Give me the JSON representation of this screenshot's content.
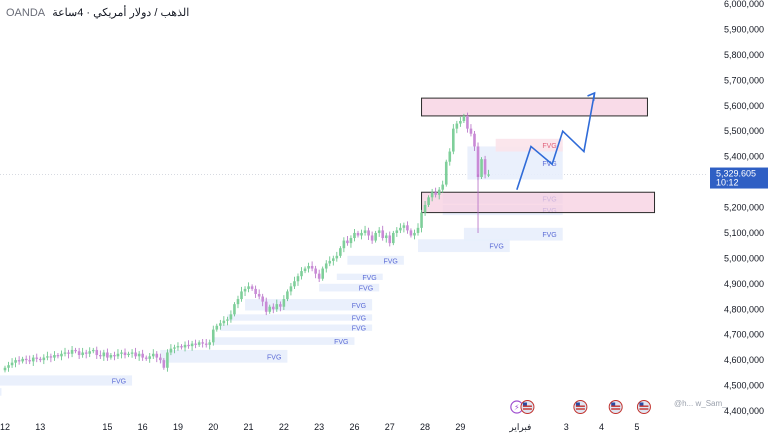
{
  "header": {
    "title": "الذهب / دولار أمريكي · 4ساعة",
    "broker": "OANDA"
  },
  "colors": {
    "up": "#7fcf9a",
    "up_border": "#5cbf80",
    "down": "#c98ad6",
    "down_border": "#b36bc4",
    "fvg_fill": "#e8eefc",
    "fvg_text": "#5b6bd6",
    "zone_fill": "#f7cfe0",
    "zone_border": "#2a2a2a",
    "projection": "#2f6bd8",
    "price_tag": "#2f5fc4",
    "grid_text": "#131722"
  },
  "watermark": "@h... w_Sam_",
  "chart_data": {
    "type": "candlestick",
    "title": "الذهب / دولار أمريكي · 4ساعة",
    "source": "OANDA",
    "ylim": [
      4400000,
      6000000
    ],
    "y_ticks": [
      "4,400,000",
      "4,500,000",
      "4,600,000",
      "4,700,000",
      "4,800,000",
      "4,900,000",
      "5,000,000",
      "5,100,000",
      "5,200,000",
      "5,300,000",
      "5,400,000",
      "5,500,000",
      "5,600,000",
      "5,700,000",
      "5,800,000",
      "5,900,000",
      "6,000,000"
    ],
    "y_tick_values": [
      4400000,
      4500000,
      4600000,
      4700000,
      4800000,
      4900000,
      5000000,
      5100000,
      5200000,
      5300000,
      5400000,
      5500000,
      5600000,
      5700000,
      5800000,
      5900000,
      6000000
    ],
    "x_ticks": [
      {
        "label": "12",
        "i": 0
      },
      {
        "label": "13",
        "i": 10
      },
      {
        "label": "15",
        "i": 29
      },
      {
        "label": "16",
        "i": 39
      },
      {
        "label": "19",
        "i": 49
      },
      {
        "label": "20",
        "i": 59
      },
      {
        "label": "21",
        "i": 69
      },
      {
        "label": "22",
        "i": 79
      },
      {
        "label": "23",
        "i": 89
      },
      {
        "label": "26",
        "i": 99
      },
      {
        "label": "27",
        "i": 109
      },
      {
        "label": "28",
        "i": 119
      },
      {
        "label": "29",
        "i": 129
      },
      {
        "label": "فبراير",
        "i": 146
      },
      {
        "label": "3",
        "i": 159
      },
      {
        "label": "4",
        "i": 169
      },
      {
        "label": "5",
        "i": 179
      }
    ],
    "current_price": "5,329.605",
    "current_value": 5329605,
    "countdown": "10:12",
    "candles_close": [
      4570000,
      4580000,
      4590000,
      4600000,
      4595000,
      4605000,
      4600000,
      4595000,
      4610000,
      4605000,
      4600000,
      4610000,
      4615000,
      4610000,
      4620000,
      4615000,
      4625000,
      4630000,
      4625000,
      4640000,
      4635000,
      4620000,
      4630000,
      4625000,
      4635000,
      4640000,
      4620000,
      4615000,
      4630000,
      4610000,
      4620000,
      4615000,
      4625000,
      4630000,
      4620000,
      4625000,
      4630000,
      4615000,
      4625000,
      4610000,
      4605000,
      4615000,
      4625000,
      4610000,
      4600000,
      4570000,
      4630000,
      4645000,
      4650000,
      4655000,
      4650000,
      4660000,
      4655000,
      4665000,
      4660000,
      4670000,
      4665000,
      4660000,
      4670000,
      4720000,
      4735000,
      4745000,
      4755000,
      4760000,
      4780000,
      4820000,
      4840000,
      4870000,
      4880000,
      4890000,
      4880000,
      4860000,
      4850000,
      4830000,
      4790000,
      4810000,
      4800000,
      4820000,
      4810000,
      4840000,
      4870000,
      4890000,
      4910000,
      4930000,
      4950000,
      4960000,
      4970000,
      4960000,
      4940000,
      4920000,
      4960000,
      4980000,
      4990000,
      5000000,
      5010000,
      5040000,
      5070000,
      5060000,
      5080000,
      5100000,
      5090000,
      5100000,
      5110000,
      5090000,
      5070000,
      5100000,
      5110000,
      5080000,
      5090000,
      5060000,
      5100000,
      5110000,
      5120000,
      5130000,
      5110000,
      5090000,
      5100000,
      5120000,
      5180000,
      5210000,
      5240000,
      5260000,
      5250000,
      5270000,
      5290000,
      5380000,
      5420000,
      5510000,
      5530000,
      5540000,
      5560000,
      5510000,
      5490000,
      5440000,
      5320000,
      5390000,
      5330000,
      5330000
    ],
    "fvg_zones": [
      {
        "label": "FVG",
        "x0": -2,
        "x1": 36,
        "top": 4540000,
        "bottom": 4500000,
        "color": "blue"
      },
      {
        "label": "FVG",
        "x0": -6,
        "x1": -1,
        "top": 4490000,
        "bottom": 4460000,
        "color": "blue"
      },
      {
        "label": "FVG",
        "x0": 44,
        "x1": 80,
        "top": 4640000,
        "bottom": 4590000,
        "color": "blue"
      },
      {
        "label": "FVG",
        "x0": 59,
        "x1": 99,
        "top": 4690000,
        "bottom": 4660000,
        "color": "blue"
      },
      {
        "label": "FVG",
        "x0": 61,
        "x1": 104,
        "top": 4740000,
        "bottom": 4715000,
        "color": "blue"
      },
      {
        "label": "FVG",
        "x0": 63,
        "x1": 104,
        "top": 4780000,
        "bottom": 4755000,
        "color": "blue"
      },
      {
        "label": "FVG",
        "x0": 68,
        "x1": 104,
        "top": 4840000,
        "bottom": 4795000,
        "color": "blue"
      },
      {
        "label": "FVG",
        "x0": 89,
        "x1": 106,
        "top": 4900000,
        "bottom": 4870000,
        "color": "blue"
      },
      {
        "label": "FVG",
        "x0": 94,
        "x1": 107,
        "top": 4940000,
        "bottom": 4915000,
        "color": "blue"
      },
      {
        "label": "FVG",
        "x0": 97,
        "x1": 113,
        "top": 5010000,
        "bottom": 4975000,
        "color": "blue"
      },
      {
        "label": "FVG",
        "x0": 117,
        "x1": 143,
        "top": 5075000,
        "bottom": 5025000,
        "color": "blue"
      },
      {
        "label": "FVG",
        "x0": 130,
        "x1": 158,
        "top": 5120000,
        "bottom": 5070000,
        "color": "blue"
      },
      {
        "label": "FVG",
        "x0": 124,
        "x1": 158,
        "top": 5210000,
        "bottom": 5170000,
        "color": "blue"
      },
      {
        "label": "FVG",
        "x0": 124,
        "x1": 158,
        "top": 5255000,
        "bottom": 5215000,
        "color": "blue"
      },
      {
        "label": "FVG",
        "x0": 131,
        "x1": 158,
        "top": 5440000,
        "bottom": 5310000,
        "color": "blue"
      },
      {
        "label": "FVG",
        "x0": 139,
        "x1": 158,
        "top": 5470000,
        "bottom": 5420000,
        "color": "red"
      }
    ],
    "zones": [
      {
        "x0": 118,
        "x1": 182,
        "top": 5630000,
        "bottom": 5560000
      },
      {
        "x0": 118,
        "x1": 184,
        "top": 5260000,
        "bottom": 5180000
      }
    ],
    "projection": [
      {
        "i": 145,
        "y": 5270000
      },
      {
        "i": 149,
        "y": 5440000
      },
      {
        "i": 155,
        "y": 5370000
      },
      {
        "i": 158,
        "y": 5500000
      },
      {
        "i": 164,
        "y": 5420000
      },
      {
        "i": 167,
        "y": 5650000
      }
    ],
    "events": [
      {
        "i": 145,
        "kind": "bolt"
      },
      {
        "i": 148,
        "kind": "flag"
      },
      {
        "i": 163,
        "kind": "flag"
      },
      {
        "i": 173,
        "kind": "flag"
      },
      {
        "i": 181,
        "kind": "flag"
      }
    ]
  }
}
